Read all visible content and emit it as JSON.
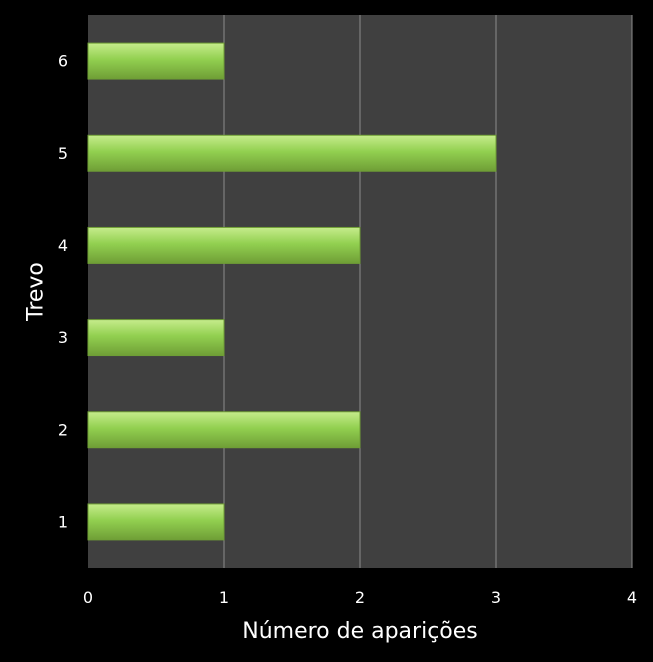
{
  "chart_data": {
    "type": "bar",
    "orientation": "horizontal",
    "categories": [
      "1",
      "2",
      "3",
      "4",
      "5",
      "6"
    ],
    "values": [
      1,
      2,
      1,
      2,
      3,
      1
    ],
    "xlabel": "Número de aparições",
    "ylabel": "Trevo",
    "xlim": [
      0,
      4
    ],
    "xticks": [
      "0",
      "1",
      "2",
      "3",
      "4"
    ],
    "grid": true,
    "colors": {
      "background": "#000000",
      "plot_area": "#404040",
      "bar": "#92d050",
      "bar_highlight": "#c6ec8c",
      "bar_shadow": "#6f9e36",
      "gridline": "#8c8c8c",
      "text": "#ffffff"
    }
  }
}
